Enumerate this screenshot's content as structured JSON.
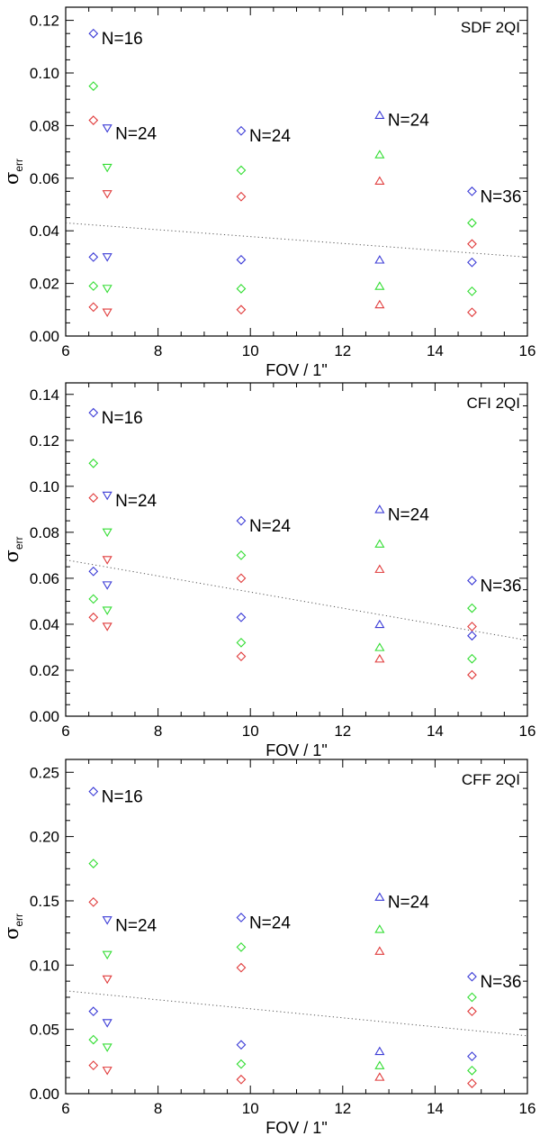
{
  "symbol_legend": {
    "diamond": "diamond-marker",
    "triangle_down": "down-triangle-marker",
    "triangle_up": "up-triangle-marker"
  },
  "colors": {
    "blue": "#3b3bd6",
    "green": "#33dd33",
    "red": "#e03b3b",
    "axis": "#000000",
    "fit": "#555555"
  },
  "chart_data": [
    {
      "type": "scatter",
      "title": "SDF  2QI",
      "xlabel": "FOV / 1\"",
      "ylabel_symbol": "σ",
      "ylabel_sub": "err",
      "xlim": [
        6,
        16
      ],
      "ylim": [
        0,
        0.125
      ],
      "xticks": [
        6,
        8,
        10,
        12,
        14,
        16
      ],
      "xtick_labels": [
        "6",
        "8",
        "10",
        "12",
        "14",
        "16"
      ],
      "yticks": [
        0,
        0.02,
        0.04,
        0.06,
        0.08,
        0.1,
        0.12
      ],
      "ytick_labels": [
        "0.00",
        "0.02",
        "0.04",
        "0.06",
        "0.08",
        "0.10",
        "0.12"
      ],
      "points": [
        {
          "x": 6.6,
          "y": 0.115,
          "color": "blue",
          "symbol": "diamond"
        },
        {
          "x": 6.6,
          "y": 0.095,
          "color": "green",
          "symbol": "diamond"
        },
        {
          "x": 6.6,
          "y": 0.082,
          "color": "red",
          "symbol": "diamond"
        },
        {
          "x": 6.6,
          "y": 0.03,
          "color": "blue",
          "symbol": "diamond"
        },
        {
          "x": 6.6,
          "y": 0.019,
          "color": "green",
          "symbol": "diamond"
        },
        {
          "x": 6.6,
          "y": 0.011,
          "color": "red",
          "symbol": "diamond"
        },
        {
          "x": 6.9,
          "y": 0.079,
          "color": "blue",
          "symbol": "triangle_down"
        },
        {
          "x": 6.9,
          "y": 0.064,
          "color": "green",
          "symbol": "triangle_down"
        },
        {
          "x": 6.9,
          "y": 0.054,
          "color": "red",
          "symbol": "triangle_down"
        },
        {
          "x": 6.9,
          "y": 0.03,
          "color": "blue",
          "symbol": "triangle_down"
        },
        {
          "x": 6.9,
          "y": 0.018,
          "color": "green",
          "symbol": "triangle_down"
        },
        {
          "x": 6.9,
          "y": 0.009,
          "color": "red",
          "symbol": "triangle_down"
        },
        {
          "x": 9.8,
          "y": 0.078,
          "color": "blue",
          "symbol": "diamond"
        },
        {
          "x": 9.8,
          "y": 0.063,
          "color": "green",
          "symbol": "diamond"
        },
        {
          "x": 9.8,
          "y": 0.053,
          "color": "red",
          "symbol": "diamond"
        },
        {
          "x": 9.8,
          "y": 0.029,
          "color": "blue",
          "symbol": "diamond"
        },
        {
          "x": 9.8,
          "y": 0.018,
          "color": "green",
          "symbol": "diamond"
        },
        {
          "x": 9.8,
          "y": 0.01,
          "color": "red",
          "symbol": "diamond"
        },
        {
          "x": 12.8,
          "y": 0.084,
          "color": "blue",
          "symbol": "triangle_up"
        },
        {
          "x": 12.8,
          "y": 0.069,
          "color": "green",
          "symbol": "triangle_up"
        },
        {
          "x": 12.8,
          "y": 0.059,
          "color": "red",
          "symbol": "triangle_up"
        },
        {
          "x": 12.8,
          "y": 0.029,
          "color": "blue",
          "symbol": "triangle_up"
        },
        {
          "x": 12.8,
          "y": 0.019,
          "color": "green",
          "symbol": "triangle_up"
        },
        {
          "x": 12.8,
          "y": 0.012,
          "color": "red",
          "symbol": "triangle_up"
        },
        {
          "x": 14.8,
          "y": 0.055,
          "color": "blue",
          "symbol": "diamond"
        },
        {
          "x": 14.8,
          "y": 0.043,
          "color": "green",
          "symbol": "diamond"
        },
        {
          "x": 14.8,
          "y": 0.035,
          "color": "red",
          "symbol": "diamond"
        },
        {
          "x": 14.8,
          "y": 0.028,
          "color": "blue",
          "symbol": "diamond"
        },
        {
          "x": 14.8,
          "y": 0.017,
          "color": "green",
          "symbol": "diamond"
        },
        {
          "x": 14.8,
          "y": 0.009,
          "color": "red",
          "symbol": "diamond"
        }
      ],
      "annotations": [
        {
          "x": 6.6,
          "y": 0.115,
          "text": "N=16"
        },
        {
          "x": 6.9,
          "y": 0.079,
          "text": "N=24"
        },
        {
          "x": 9.8,
          "y": 0.078,
          "text": "N=24"
        },
        {
          "x": 12.8,
          "y": 0.084,
          "text": "N=24"
        },
        {
          "x": 14.8,
          "y": 0.055,
          "text": "N=36"
        }
      ],
      "fit_line": {
        "x": [
          6,
          16
        ],
        "y": [
          0.043,
          0.03
        ]
      }
    },
    {
      "type": "scatter",
      "title": "CFI  2QI",
      "xlabel": "FOV / 1\"",
      "ylabel_symbol": "σ",
      "ylabel_sub": "err",
      "xlim": [
        6,
        16
      ],
      "ylim": [
        0,
        0.145
      ],
      "xticks": [
        6,
        8,
        10,
        12,
        14,
        16
      ],
      "xtick_labels": [
        "6",
        "8",
        "10",
        "12",
        "14",
        "16"
      ],
      "yticks": [
        0,
        0.02,
        0.04,
        0.06,
        0.08,
        0.1,
        0.12,
        0.14
      ],
      "ytick_labels": [
        "0.00",
        "0.02",
        "0.04",
        "0.06",
        "0.08",
        "0.10",
        "0.12",
        "0.14"
      ],
      "points": [
        {
          "x": 6.6,
          "y": 0.132,
          "color": "blue",
          "symbol": "diamond"
        },
        {
          "x": 6.6,
          "y": 0.11,
          "color": "green",
          "symbol": "diamond"
        },
        {
          "x": 6.6,
          "y": 0.095,
          "color": "red",
          "symbol": "diamond"
        },
        {
          "x": 6.6,
          "y": 0.063,
          "color": "blue",
          "symbol": "diamond"
        },
        {
          "x": 6.6,
          "y": 0.051,
          "color": "green",
          "symbol": "diamond"
        },
        {
          "x": 6.6,
          "y": 0.043,
          "color": "red",
          "symbol": "diamond"
        },
        {
          "x": 6.9,
          "y": 0.096,
          "color": "blue",
          "symbol": "triangle_down"
        },
        {
          "x": 6.9,
          "y": 0.08,
          "color": "green",
          "symbol": "triangle_down"
        },
        {
          "x": 6.9,
          "y": 0.068,
          "color": "red",
          "symbol": "triangle_down"
        },
        {
          "x": 6.9,
          "y": 0.057,
          "color": "blue",
          "symbol": "triangle_down"
        },
        {
          "x": 6.9,
          "y": 0.046,
          "color": "green",
          "symbol": "triangle_down"
        },
        {
          "x": 6.9,
          "y": 0.039,
          "color": "red",
          "symbol": "triangle_down"
        },
        {
          "x": 9.8,
          "y": 0.085,
          "color": "blue",
          "symbol": "diamond"
        },
        {
          "x": 9.8,
          "y": 0.07,
          "color": "green",
          "symbol": "diamond"
        },
        {
          "x": 9.8,
          "y": 0.06,
          "color": "red",
          "symbol": "diamond"
        },
        {
          "x": 9.8,
          "y": 0.043,
          "color": "blue",
          "symbol": "diamond"
        },
        {
          "x": 9.8,
          "y": 0.032,
          "color": "green",
          "symbol": "diamond"
        },
        {
          "x": 9.8,
          "y": 0.026,
          "color": "red",
          "symbol": "diamond"
        },
        {
          "x": 12.8,
          "y": 0.09,
          "color": "blue",
          "symbol": "triangle_up"
        },
        {
          "x": 12.8,
          "y": 0.075,
          "color": "green",
          "symbol": "triangle_up"
        },
        {
          "x": 12.8,
          "y": 0.064,
          "color": "red",
          "symbol": "triangle_up"
        },
        {
          "x": 12.8,
          "y": 0.04,
          "color": "blue",
          "symbol": "triangle_up"
        },
        {
          "x": 12.8,
          "y": 0.03,
          "color": "green",
          "symbol": "triangle_up"
        },
        {
          "x": 12.8,
          "y": 0.025,
          "color": "red",
          "symbol": "triangle_up"
        },
        {
          "x": 14.8,
          "y": 0.059,
          "color": "blue",
          "symbol": "diamond"
        },
        {
          "x": 14.8,
          "y": 0.047,
          "color": "green",
          "symbol": "diamond"
        },
        {
          "x": 14.8,
          "y": 0.039,
          "color": "red",
          "symbol": "diamond"
        },
        {
          "x": 14.8,
          "y": 0.035,
          "color": "blue",
          "symbol": "diamond"
        },
        {
          "x": 14.8,
          "y": 0.025,
          "color": "green",
          "symbol": "diamond"
        },
        {
          "x": 14.8,
          "y": 0.018,
          "color": "red",
          "symbol": "diamond"
        }
      ],
      "annotations": [
        {
          "x": 6.6,
          "y": 0.132,
          "text": "N=16"
        },
        {
          "x": 6.9,
          "y": 0.096,
          "text": "N=24"
        },
        {
          "x": 9.8,
          "y": 0.085,
          "text": "N=24"
        },
        {
          "x": 12.8,
          "y": 0.09,
          "text": "N=24"
        },
        {
          "x": 14.8,
          "y": 0.059,
          "text": "N=36"
        }
      ],
      "fit_line": {
        "x": [
          6,
          16
        ],
        "y": [
          0.068,
          0.033
        ]
      }
    },
    {
      "type": "scatter",
      "title": "CFF  2QI",
      "xlabel": "FOV / 1\"",
      "ylabel_symbol": "σ",
      "ylabel_sub": "err",
      "xlim": [
        6,
        16
      ],
      "ylim": [
        0,
        0.26
      ],
      "xticks": [
        6,
        8,
        10,
        12,
        14,
        16
      ],
      "xtick_labels": [
        "6",
        "8",
        "10",
        "12",
        "14",
        "16"
      ],
      "yticks": [
        0,
        0.05,
        0.1,
        0.15,
        0.2,
        0.25
      ],
      "ytick_labels": [
        "0.00",
        "0.05",
        "0.10",
        "0.15",
        "0.20",
        "0.25"
      ],
      "points": [
        {
          "x": 6.6,
          "y": 0.235,
          "color": "blue",
          "symbol": "diamond"
        },
        {
          "x": 6.6,
          "y": 0.179,
          "color": "green",
          "symbol": "diamond"
        },
        {
          "x": 6.6,
          "y": 0.149,
          "color": "red",
          "symbol": "diamond"
        },
        {
          "x": 6.6,
          "y": 0.064,
          "color": "blue",
          "symbol": "diamond"
        },
        {
          "x": 6.6,
          "y": 0.042,
          "color": "green",
          "symbol": "diamond"
        },
        {
          "x": 6.6,
          "y": 0.022,
          "color": "red",
          "symbol": "diamond"
        },
        {
          "x": 6.9,
          "y": 0.135,
          "color": "blue",
          "symbol": "triangle_down"
        },
        {
          "x": 6.9,
          "y": 0.108,
          "color": "green",
          "symbol": "triangle_down"
        },
        {
          "x": 6.9,
          "y": 0.089,
          "color": "red",
          "symbol": "triangle_down"
        },
        {
          "x": 6.9,
          "y": 0.055,
          "color": "blue",
          "symbol": "triangle_down"
        },
        {
          "x": 6.9,
          "y": 0.036,
          "color": "green",
          "symbol": "triangle_down"
        },
        {
          "x": 6.9,
          "y": 0.018,
          "color": "red",
          "symbol": "triangle_down"
        },
        {
          "x": 9.8,
          "y": 0.137,
          "color": "blue",
          "symbol": "diamond"
        },
        {
          "x": 9.8,
          "y": 0.114,
          "color": "green",
          "symbol": "diamond"
        },
        {
          "x": 9.8,
          "y": 0.098,
          "color": "red",
          "symbol": "diamond"
        },
        {
          "x": 9.8,
          "y": 0.038,
          "color": "blue",
          "symbol": "diamond"
        },
        {
          "x": 9.8,
          "y": 0.023,
          "color": "green",
          "symbol": "diamond"
        },
        {
          "x": 9.8,
          "y": 0.011,
          "color": "red",
          "symbol": "diamond"
        },
        {
          "x": 12.8,
          "y": 0.153,
          "color": "blue",
          "symbol": "triangle_up"
        },
        {
          "x": 12.8,
          "y": 0.128,
          "color": "green",
          "symbol": "triangle_up"
        },
        {
          "x": 12.8,
          "y": 0.111,
          "color": "red",
          "symbol": "triangle_up"
        },
        {
          "x": 12.8,
          "y": 0.033,
          "color": "blue",
          "symbol": "triangle_up"
        },
        {
          "x": 12.8,
          "y": 0.022,
          "color": "green",
          "symbol": "triangle_up"
        },
        {
          "x": 12.8,
          "y": 0.013,
          "color": "red",
          "symbol": "triangle_up"
        },
        {
          "x": 14.8,
          "y": 0.091,
          "color": "blue",
          "symbol": "diamond"
        },
        {
          "x": 14.8,
          "y": 0.075,
          "color": "green",
          "symbol": "diamond"
        },
        {
          "x": 14.8,
          "y": 0.064,
          "color": "red",
          "symbol": "diamond"
        },
        {
          "x": 14.8,
          "y": 0.029,
          "color": "blue",
          "symbol": "diamond"
        },
        {
          "x": 14.8,
          "y": 0.018,
          "color": "green",
          "symbol": "diamond"
        },
        {
          "x": 14.8,
          "y": 0.008,
          "color": "red",
          "symbol": "diamond"
        }
      ],
      "annotations": [
        {
          "x": 6.6,
          "y": 0.235,
          "text": "N=16"
        },
        {
          "x": 6.9,
          "y": 0.135,
          "text": "N=24"
        },
        {
          "x": 9.8,
          "y": 0.137,
          "text": "N=24"
        },
        {
          "x": 12.8,
          "y": 0.153,
          "text": "N=24"
        },
        {
          "x": 14.8,
          "y": 0.091,
          "text": "N=36"
        }
      ],
      "fit_line": {
        "x": [
          6,
          16
        ],
        "y": [
          0.08,
          0.045
        ]
      }
    }
  ]
}
